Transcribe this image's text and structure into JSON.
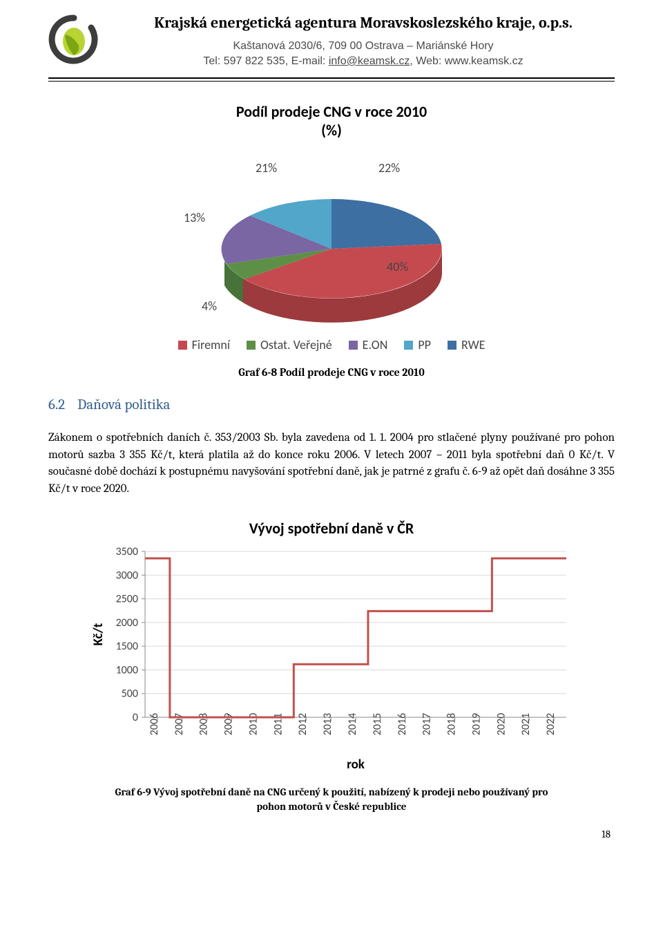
{
  "header": {
    "org_title": "Krajská energetická agentura Moravskoslezského kraje, o.p.s.",
    "address": "Kaštanová 2030/6, 709 00 Ostrava – Mariánské Hory",
    "tel_label": "Tel: 597 822 535, E-mail: ",
    "email": "info@keamsk.cz",
    "web_label": ", Web: www.keamsk.cz",
    "logo_colors": {
      "ring": "#3d3d3d",
      "leaf_light": "#b7d433",
      "leaf_dark": "#7ca613"
    }
  },
  "pie": {
    "title": "Podíl prodeje CNG v roce 2010",
    "subtitle": "(%)",
    "slices": [
      {
        "label": "Firemní",
        "value": 40,
        "color": "#c54a4f"
      },
      {
        "label": "Ostat. Veřejné",
        "value": 4,
        "color": "#5e8f47"
      },
      {
        "label": "E.ON",
        "value": 13,
        "color": "#7a66a3"
      },
      {
        "label": "PP",
        "value": 21,
        "color": "#52a6c9"
      },
      {
        "label": "RWE",
        "value": 22,
        "color": "#3d6fa3"
      }
    ],
    "slice_labels": {
      "l40": "40%",
      "l4": "4%",
      "l13": "13%",
      "l21": "21%",
      "l22": "22%"
    },
    "legend": {
      "i1": "Firemní",
      "i2": "Ostat. Veřejné",
      "i3": "E.ON",
      "i4": "PP",
      "i5": "RWE"
    },
    "caption": "Graf 6-8 Podíl prodeje CNG v roce 2010"
  },
  "section": {
    "num": "6.2",
    "title": "Daňová politika",
    "body": "Zákonem o spotřebních daních č. 353/2003 Sb. byla zavedena od 1. 1. 2004 pro stlačené plyny používané pro pohon motorů sazba 3 355 Kč/t, která platila až do konce roku 2006. V letech 2007 – 2011 byla spotřební daň 0 Kč/t. V současné době dochází k postupnému navyšování spotřební daně, jak je patrné z grafu č. 6-9 až opět daň dosáhne 3 355 Kč/t v roce 2020."
  },
  "linechart": {
    "title": "Vývoj spotřební daně v ČR",
    "ylabel": "Kč/t",
    "xlabel": "rok",
    "ylim": [
      0,
      3500
    ],
    "ytick_step": 500,
    "yticks": [
      "0",
      "500",
      "1000",
      "1500",
      "2000",
      "2500",
      "3000",
      "3500"
    ],
    "categories": [
      "2006",
      "2007",
      "2008",
      "2009",
      "2010",
      "2011",
      "2012",
      "2013",
      "2014",
      "2015",
      "2016",
      "2017",
      "2018",
      "2019",
      "2020",
      "2021",
      "2022"
    ],
    "values": [
      3355,
      0,
      0,
      0,
      0,
      0,
      1120,
      1120,
      1120,
      2240,
      2240,
      2240,
      2240,
      2240,
      3355,
      3355,
      3355
    ],
    "line_color": "#c0504d",
    "line_width": 3,
    "grid_color": "#d9d9d9",
    "axis_color": "#8a8a8a",
    "caption_l1": "Graf 6-9 Vývoj spotřební daně na CNG určený k použití, nabízený k prodeji nebo používaný pro",
    "caption_l2": "pohon motorů v České republice"
  },
  "page_number": "18"
}
